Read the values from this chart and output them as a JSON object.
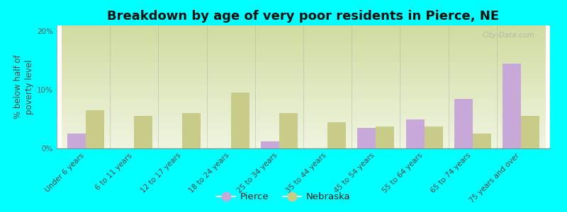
{
  "title": "Breakdown by age of very poor residents in Pierce, NE",
  "categories": [
    "Under 6 years",
    "6 to 11 years",
    "12 to 17 years",
    "18 to 24 years",
    "25 to 34 years",
    "35 to 44 years",
    "45 to 54 years",
    "55 to 64 years",
    "65 to 74 years",
    "75 years and over"
  ],
  "pierce_values": [
    2.5,
    0,
    0,
    0,
    1.2,
    0,
    3.5,
    5.0,
    8.5,
    14.5
  ],
  "nebraska_values": [
    6.5,
    5.5,
    6.0,
    9.5,
    6.0,
    4.5,
    3.8,
    3.8,
    2.5,
    5.5
  ],
  "pierce_color": "#c8a8d8",
  "nebraska_color": "#c8cc88",
  "background_color": "#00ffff",
  "plot_bg_top": "#d0dca0",
  "plot_bg_bottom": "#f0f5e0",
  "ylabel": "% below half of\npoverty level",
  "ylim": [
    0,
    21
  ],
  "yticks": [
    0,
    10,
    20
  ],
  "ytick_labels": [
    "0%",
    "10%",
    "20%"
  ],
  "legend_pierce": "Pierce",
  "legend_nebraska": "Nebraska",
  "bar_width": 0.38,
  "title_fontsize": 13,
  "axis_fontsize": 8.5,
  "tick_fontsize": 7.5
}
